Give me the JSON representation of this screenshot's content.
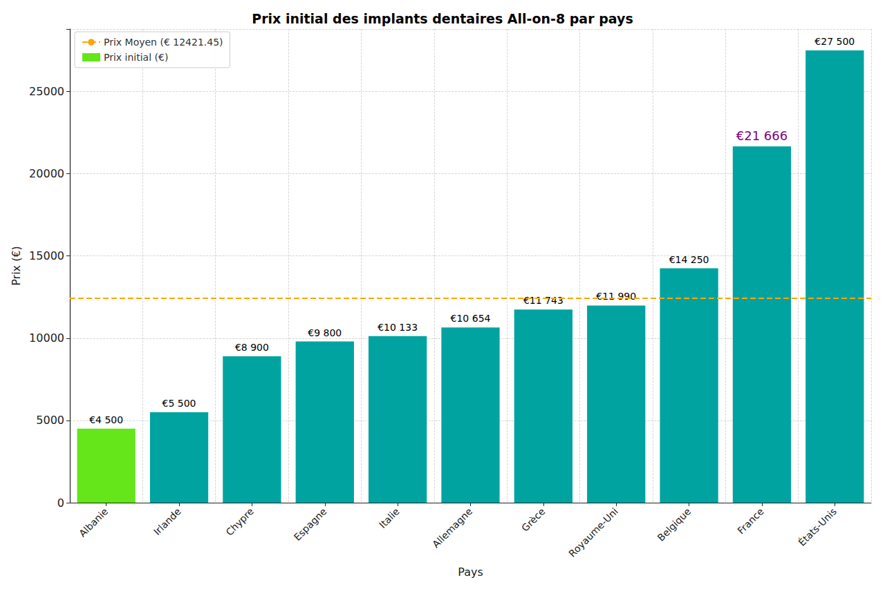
{
  "chart_data": {
    "type": "bar",
    "title": "Prix initial des implants dentaires All-on-8 par pays",
    "x_label": "Pays",
    "y_label": "Prix (€)",
    "categories": [
      "Albanie",
      "Irlande",
      "Chypre",
      "Espagne",
      "Italie",
      "Allemagne",
      "Grèce",
      "Royaume-Uni",
      "Belgique",
      "France",
      "États-Unis"
    ],
    "series": [
      {
        "name": "Prix initial (€)",
        "color": "#64e61a",
        "colors": [
          "#64e61a",
          "#00a3a0",
          "#00a3a0",
          "#00a3a0",
          "#00a3a0",
          "#00a3a0",
          "#00a3a0",
          "#00a3a0",
          "#00a3a0",
          "#00a3a0",
          "#00a3a0"
        ],
        "values": [
          4500,
          5500,
          8900,
          9800,
          10133,
          10654,
          11743,
          11990,
          14250,
          21666,
          27500
        ],
        "value_labels": [
          "€4 500",
          "€5 500",
          "€8 900",
          "€9 800",
          "€10 133",
          "€10 654",
          "€11 743",
          "€11 990",
          "€14 250",
          "€21 666",
          "€27 500"
        ],
        "label_colors": [
          "#000000",
          "#000000",
          "#000000",
          "#000000",
          "#000000",
          "#000000",
          "#000000",
          "#000000",
          "#000000",
          "#800080",
          "#000000"
        ]
      }
    ],
    "reference_line": {
      "name": "Prix Moyen (€ 12421.45)",
      "value": 12421.45,
      "color": "#ffa500",
      "line_style": "dashed"
    },
    "ylim": [
      0,
      28800
    ],
    "yticks": [
      0,
      5000,
      10000,
      15000,
      20000,
      25000
    ],
    "grid": true,
    "legend": "upper left",
    "data_labels": true
  }
}
